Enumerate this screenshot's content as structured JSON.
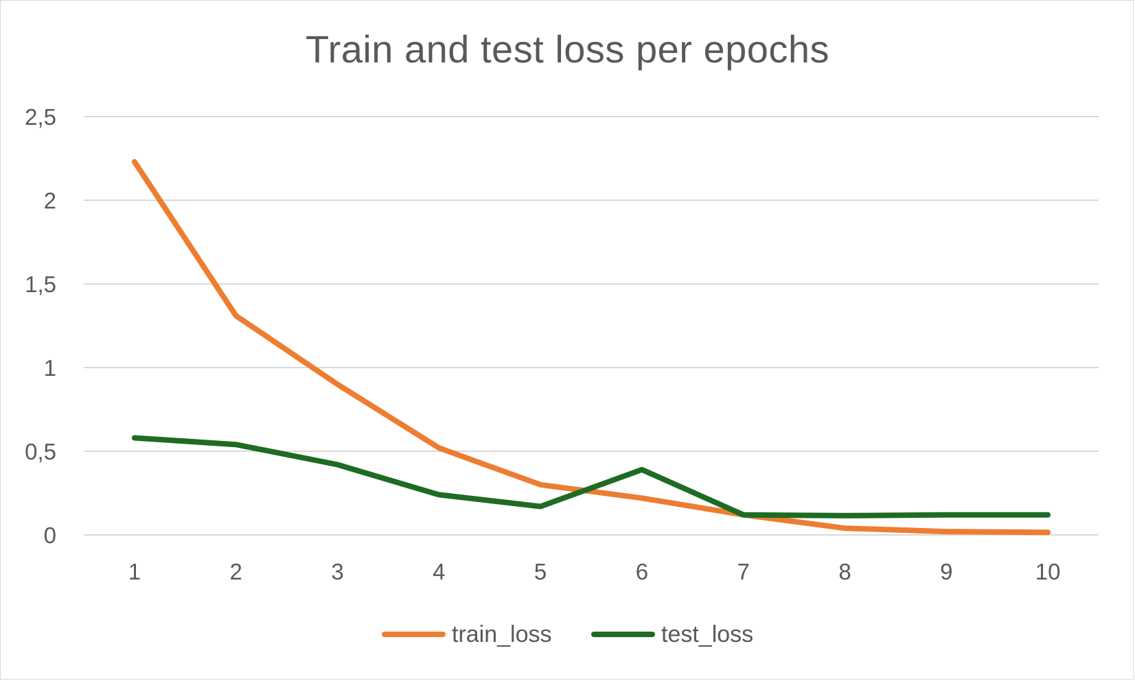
{
  "chart_data": {
    "type": "line",
    "title": "Train and test loss per epochs",
    "xlabel": "",
    "ylabel": "",
    "categories": [
      "1",
      "2",
      "3",
      "4",
      "5",
      "6",
      "7",
      "8",
      "9",
      "10"
    ],
    "series": [
      {
        "name": "train_loss",
        "color": "#ed7d31",
        "values": [
          2.23,
          1.31,
          0.9,
          0.52,
          0.3,
          0.22,
          0.12,
          0.04,
          0.02,
          0.015
        ]
      },
      {
        "name": "test_loss",
        "color": "#1e6b24",
        "values": [
          0.58,
          0.54,
          0.42,
          0.24,
          0.17,
          0.39,
          0.12,
          0.115,
          0.12,
          0.12
        ]
      }
    ],
    "ylim": [
      0,
      2.5
    ],
    "yticks": [
      "0",
      "0,5",
      "1",
      "1,5",
      "2",
      "2,5"
    ],
    "ytick_values": [
      0,
      0.5,
      1,
      1.5,
      2,
      2.5
    ],
    "grid": true,
    "legend_position": "bottom"
  }
}
